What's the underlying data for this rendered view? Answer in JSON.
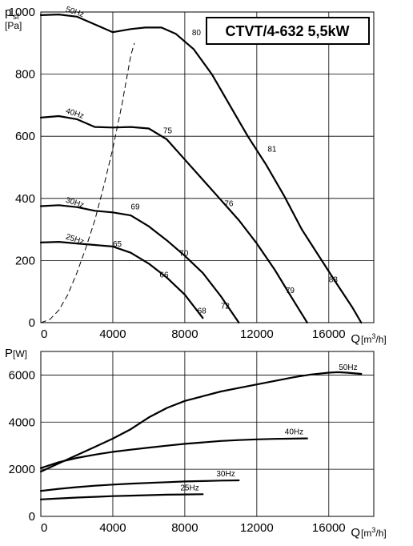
{
  "title": "CTVT/4-632 5,5kW",
  "chart_data": [
    {
      "type": "line",
      "ylabel_main": "p",
      "ylabel_sub": "sf",
      "yunit": "[Pa]",
      "xlabel": "Q",
      "xunit_pre": "[m",
      "xunit_sup": "3",
      "xunit_post": "/h]",
      "xlim": [
        0,
        18500
      ],
      "ylim": [
        0,
        1000
      ],
      "xticks": [
        "0",
        "4000",
        "8000",
        "12000",
        "16000"
      ],
      "yticks": [
        "0",
        "200",
        "400",
        "600",
        "800",
        "1000"
      ],
      "grid": true,
      "series": [
        {
          "name": "50Hz",
          "x": [
            0,
            1000,
            2000,
            3000,
            4000,
            5000,
            5800,
            6700,
            7500,
            8500,
            9500,
            10500,
            11500,
            12500,
            13500,
            14500,
            15500,
            16500,
            17300,
            17800
          ],
          "y": [
            990,
            992,
            985,
            960,
            935,
            945,
            950,
            950,
            930,
            880,
            800,
            700,
            600,
            510,
            410,
            300,
            210,
            120,
            50,
            0
          ]
        },
        {
          "name": "40Hz",
          "x": [
            0,
            1000,
            2000,
            3000,
            4000,
            5000,
            6000,
            7000,
            8000,
            9000,
            10000,
            11000,
            12000,
            13000,
            14000,
            14800
          ],
          "y": [
            660,
            665,
            655,
            630,
            628,
            630,
            625,
            590,
            525,
            460,
            395,
            330,
            255,
            170,
            75,
            0
          ]
        },
        {
          "name": "30Hz",
          "x": [
            0,
            1000,
            2000,
            3000,
            4000,
            5000,
            6000,
            7000,
            8000,
            9000,
            10000,
            11000
          ],
          "y": [
            375,
            378,
            372,
            360,
            355,
            345,
            310,
            265,
            215,
            160,
            85,
            0
          ]
        },
        {
          "name": "25Hz",
          "x": [
            0,
            1000,
            2000,
            3000,
            4000,
            5000,
            6000,
            7000,
            8000,
            9000
          ],
          "y": [
            258,
            260,
            255,
            250,
            245,
            225,
            190,
            145,
            90,
            15
          ]
        }
      ],
      "system_curve": {
        "x": [
          0,
          500,
          1000,
          1500,
          2000,
          2500,
          3000,
          3500,
          4000,
          4500,
          5000,
          5200
        ],
        "y": [
          0,
          10,
          40,
          90,
          160,
          240,
          330,
          440,
          560,
          700,
          860,
          900
        ]
      },
      "efficiency_labels": [
        {
          "text": "80",
          "x": 8400,
          "y": 925
        },
        {
          "text": "81",
          "x": 12600,
          "y": 550
        },
        {
          "text": "83",
          "x": 16000,
          "y": 130
        },
        {
          "text": "75",
          "x": 6800,
          "y": 610
        },
        {
          "text": "76",
          "x": 10200,
          "y": 375
        },
        {
          "text": "79",
          "x": 13600,
          "y": 95
        },
        {
          "text": "69",
          "x": 5000,
          "y": 365
        },
        {
          "text": "70",
          "x": 7700,
          "y": 215
        },
        {
          "text": "72",
          "x": 10000,
          "y": 45
        },
        {
          "text": "65",
          "x": 4000,
          "y": 245
        },
        {
          "text": "66",
          "x": 6600,
          "y": 145
        },
        {
          "text": "68",
          "x": 8700,
          "y": 30
        }
      ]
    },
    {
      "type": "line",
      "ylabel_main": "P",
      "yunit": "[W]",
      "xlabel": "Q",
      "xunit_pre": "[m",
      "xunit_sup": "3",
      "xunit_post": "/h]",
      "xlim": [
        0,
        18500
      ],
      "ylim": [
        0,
        7000
      ],
      "xticks": [
        "0",
        "4000",
        "8000",
        "12000",
        "16000"
      ],
      "yticks": [
        "0",
        "2000",
        "4000",
        "6000"
      ],
      "grid": true,
      "series": [
        {
          "name": "50Hz",
          "x": [
            0,
            1000,
            2000,
            3000,
            4000,
            5000,
            6000,
            7000,
            8000,
            9000,
            10000,
            11000,
            12000,
            13000,
            14000,
            15000,
            16000,
            16500,
            17000,
            17800
          ],
          "y": [
            1900,
            2250,
            2600,
            2950,
            3300,
            3700,
            4200,
            4600,
            4900,
            5100,
            5300,
            5450,
            5600,
            5750,
            5900,
            6020,
            6100,
            6120,
            6100,
            6050
          ]
        },
        {
          "name": "40Hz",
          "x": [
            0,
            1000,
            2000,
            3000,
            4000,
            5000,
            6000,
            7000,
            8000,
            9000,
            10000,
            11000,
            12000,
            13000,
            14000,
            14800
          ],
          "y": [
            2050,
            2300,
            2480,
            2620,
            2740,
            2830,
            2920,
            3000,
            3080,
            3140,
            3200,
            3240,
            3270,
            3290,
            3300,
            3310
          ]
        },
        {
          "name": "30Hz",
          "x": [
            0,
            1000,
            2000,
            3000,
            4000,
            5000,
            6000,
            7000,
            8000,
            9000,
            10000,
            11000
          ],
          "y": [
            1080,
            1170,
            1240,
            1300,
            1350,
            1390,
            1420,
            1450,
            1480,
            1500,
            1520,
            1530
          ]
        },
        {
          "name": "25Hz",
          "x": [
            0,
            1000,
            2000,
            3000,
            4000,
            5000,
            6000,
            7000,
            8000,
            9000
          ],
          "y": [
            720,
            760,
            800,
            830,
            860,
            880,
            900,
            920,
            930,
            940
          ]
        }
      ]
    }
  ]
}
